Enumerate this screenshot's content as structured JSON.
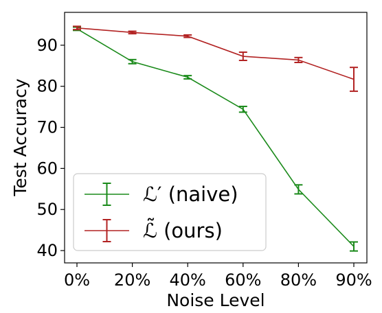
{
  "chart_data": {
    "type": "line",
    "title": "",
    "xlabel": "Noise Level",
    "ylabel": "Test Accuracy",
    "categories": [
      "0%",
      "20%",
      "40%",
      "60%",
      "80%",
      "90%"
    ],
    "ylim": [
      37,
      98
    ],
    "yticks": [
      40,
      50,
      60,
      70,
      80,
      90
    ],
    "grid": false,
    "legend_position": "lower-left",
    "series": [
      {
        "name": "ℒ′ (naive)",
        "color": "#1a8a1a",
        "values": [
          94.0,
          86.0,
          82.2,
          74.4,
          54.9,
          41.0
        ],
        "errors": [
          0.4,
          0.5,
          0.4,
          0.7,
          1.1,
          1.1
        ]
      },
      {
        "name": "ℒ̃ (ours)",
        "color": "#b22222",
        "values": [
          94.2,
          93.1,
          92.2,
          87.3,
          86.4,
          81.7
        ],
        "errors": [
          0.4,
          0.3,
          0.3,
          1.0,
          0.6,
          2.9
        ]
      }
    ]
  }
}
